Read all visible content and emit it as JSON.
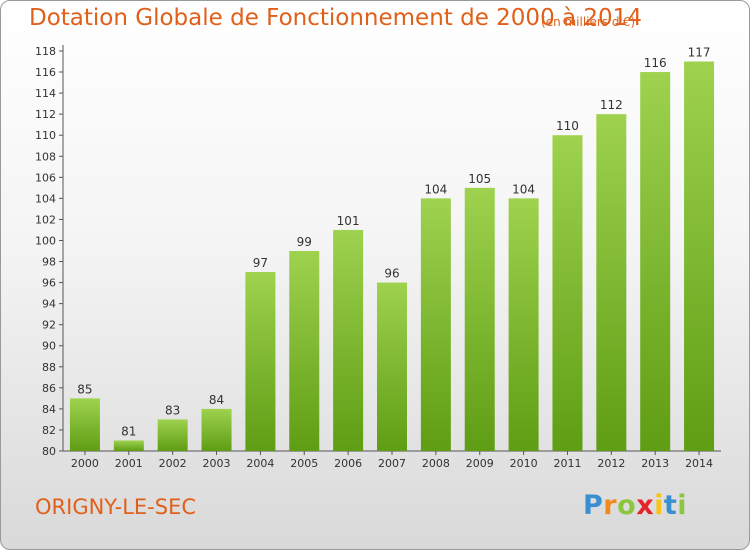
{
  "title": "Dotation Globale de Fonctionnement de 2000 à 2014",
  "subtitle": "(en milliers d'€)",
  "commune": "ORIGNY-LE-SEC",
  "logo": {
    "letters": [
      "P",
      "r",
      "o",
      "x",
      "i",
      "t",
      "i"
    ],
    "colors": [
      "#3a8fd1",
      "#f08a1c",
      "#8cc63f",
      "#e6252a",
      "#f7c41f",
      "#3a8fd1",
      "#8cc63f"
    ]
  },
  "colors": {
    "bar_light": "#9ed24f",
    "bar_dark": "#5f9d14",
    "text_orange": "#e0601a"
  },
  "chart_data": {
    "type": "bar",
    "categories": [
      "2000",
      "2001",
      "2002",
      "2003",
      "2004",
      "2005",
      "2006",
      "2007",
      "2008",
      "2009",
      "2010",
      "2011",
      "2012",
      "2013",
      "2014"
    ],
    "values": [
      85,
      81,
      83,
      84,
      97,
      99,
      101,
      96,
      104,
      105,
      104,
      110,
      112,
      116,
      117
    ],
    "ylim": [
      80,
      118
    ],
    "yticks": [
      80,
      82,
      84,
      86,
      88,
      90,
      92,
      94,
      96,
      98,
      100,
      102,
      104,
      106,
      108,
      110,
      112,
      114,
      116,
      118
    ],
    "grid": false,
    "xlabel": "",
    "ylabel": ""
  }
}
